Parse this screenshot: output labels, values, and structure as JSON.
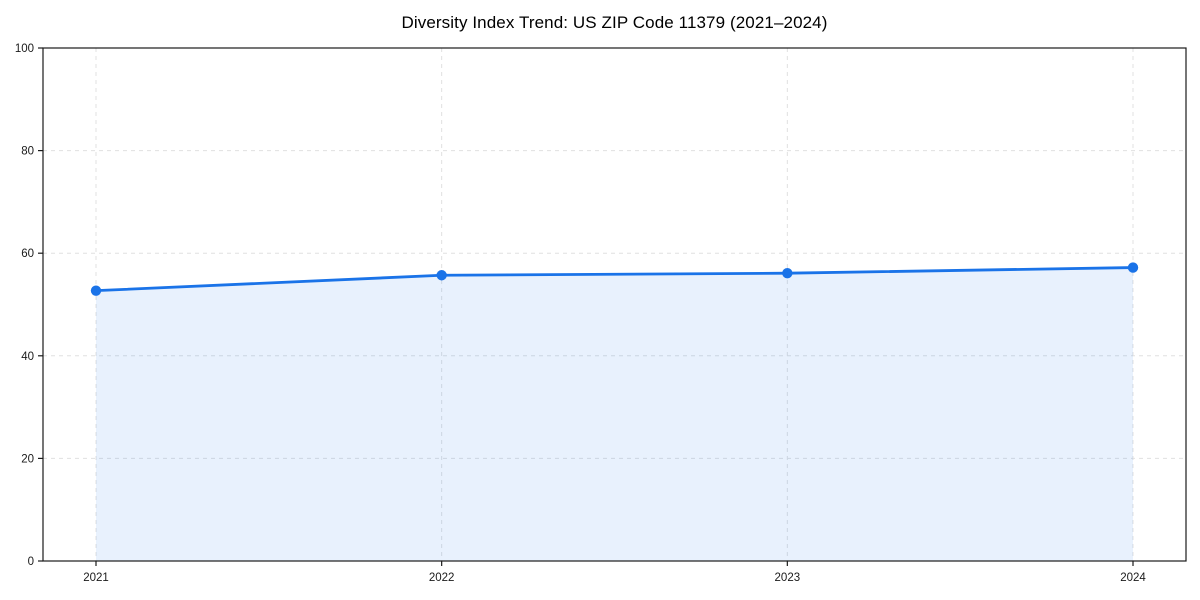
{
  "chart_data": {
    "type": "area",
    "title": "Diversity Index Trend: US ZIP Code 11379 (2021–2024)",
    "categories": [
      "2021",
      "2022",
      "2023",
      "2024"
    ],
    "series": [
      {
        "name": "Diversity Index",
        "values": [
          52.7,
          55.7,
          56.1,
          57.2
        ]
      }
    ],
    "xlabel": "",
    "ylabel": "",
    "ylim": [
      0,
      100
    ],
    "yticks": [
      0,
      20,
      40,
      60,
      80,
      100
    ],
    "grid": true,
    "grid_style": "dashed",
    "legend": "none",
    "marker": "circle",
    "colors": {
      "line": "#1a73e8",
      "marker": "#1a73e8",
      "fill": "rgba(26, 115, 232, 0.10)",
      "gridline": "#e0e0e0",
      "axis": "#1a1a1a",
      "tick_label": "#1a1a1a",
      "title": "#000000",
      "background": "#ffffff"
    }
  }
}
